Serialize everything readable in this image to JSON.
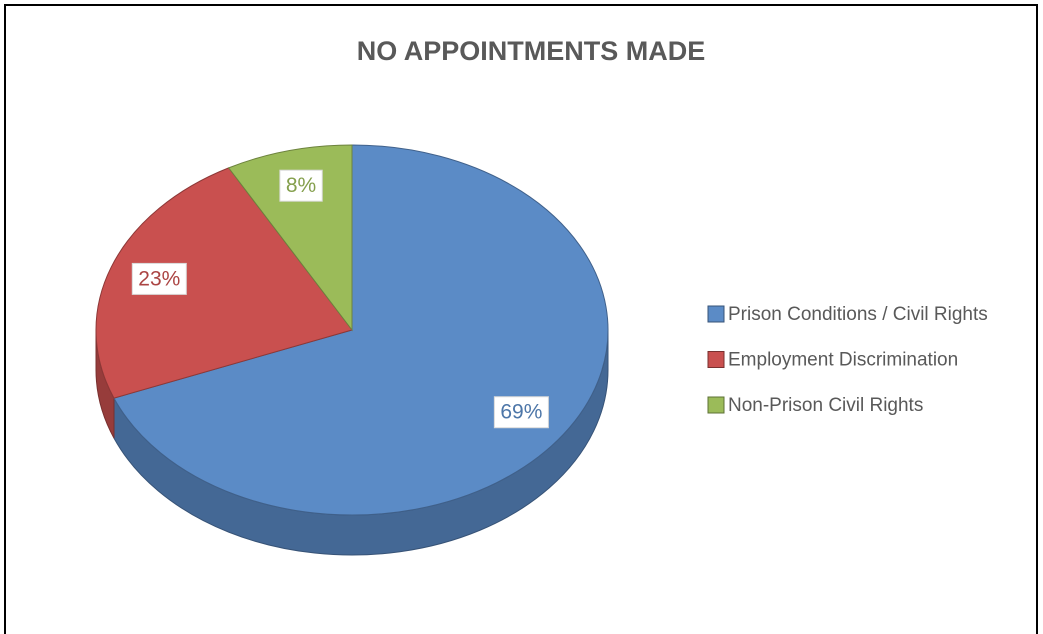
{
  "chart_data": {
    "type": "pie",
    "title": "NO APPOINTMENTS MADE",
    "categories": [
      "Prison Conditions / Civil Rights",
      "Employment Discrimination",
      "Non-Prison Civil Rights"
    ],
    "values": [
      69,
      23,
      8
    ],
    "value_labels": [
      "69%",
      "23%",
      "8%"
    ],
    "colors": [
      "#5b8bc6",
      "#c9504f",
      "#9bbb59"
    ],
    "legend": "right"
  }
}
